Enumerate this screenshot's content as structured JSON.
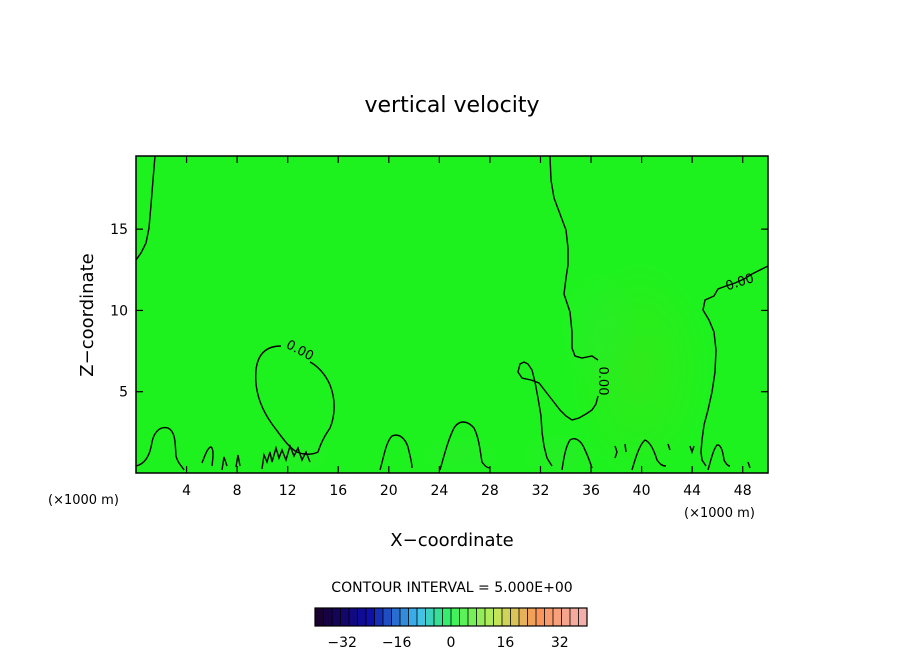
{
  "chart_data": {
    "type": "contour",
    "title": "vertical velocity",
    "xlabel": "X−coordinate",
    "ylabel": "Z−coordinate",
    "x_unit": "(×1000 m)",
    "x_unit_right": "(×1000 m)",
    "xlim": [
      0,
      50
    ],
    "ylim": [
      0,
      19.5
    ],
    "x_ticks": [
      4,
      8,
      12,
      16,
      20,
      24,
      28,
      32,
      36,
      40,
      44,
      48
    ],
    "x_tick_labels": [
      "4",
      "8",
      "12",
      "16",
      "20",
      "24",
      "28",
      "32",
      "36",
      "40",
      "44",
      "48"
    ],
    "y_ticks": [
      5,
      10,
      15
    ],
    "y_tick_labels": [
      "5",
      "10",
      "15"
    ],
    "contour_interval_text": "CONTOUR INTERVAL = 5.000E+00",
    "contour_labels": [
      "0.00",
      "0.00",
      "0.00"
    ],
    "colorbar": {
      "min": -40,
      "max": 40,
      "step": 5,
      "ticks": [
        -32,
        -16,
        0,
        16,
        32
      ],
      "tick_labels": [
        "−32",
        "−16",
        "0",
        "16",
        "32"
      ]
    },
    "field_color": "#1ef21e",
    "contour_color": "#000000"
  }
}
